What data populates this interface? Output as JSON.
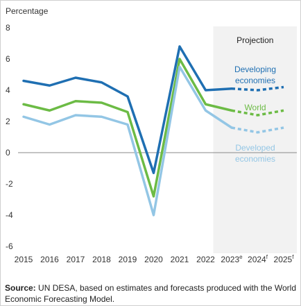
{
  "chart_data": {
    "type": "line",
    "ylabel": "Percentage",
    "yticks": [
      -6,
      -4,
      -2,
      0,
      2,
      4,
      6,
      8
    ],
    "ylim": [
      -6,
      8.5
    ],
    "categories": [
      "2015",
      "2016",
      "2017",
      "2018",
      "2019",
      "2020",
      "2021",
      "2022",
      "2023",
      "2024",
      "2025"
    ],
    "category_superscripts": [
      "",
      "",
      "",
      "",
      "",
      "",
      "",
      "",
      "e",
      "f",
      "f"
    ],
    "projection_label": "Projection",
    "projection_start": "2022",
    "grid": false,
    "series": [
      {
        "name": "Developing economies",
        "label_lines": [
          "Developing",
          "economies"
        ],
        "color": "#1f6fb2",
        "values": [
          4.6,
          4.3,
          4.8,
          4.5,
          3.6,
          -1.3,
          6.8,
          4.0,
          4.1,
          4.0,
          4.2
        ]
      },
      {
        "name": "World",
        "label_lines": [
          "World"
        ],
        "color": "#6cbb45",
        "values": [
          3.1,
          2.7,
          3.3,
          3.2,
          2.6,
          -2.8,
          6.0,
          3.1,
          2.7,
          2.4,
          2.7
        ]
      },
      {
        "name": "Developed economies",
        "label_lines": [
          "Developed",
          "economies"
        ],
        "color": "#93c6e5",
        "values": [
          2.3,
          1.8,
          2.4,
          2.3,
          1.8,
          -4.0,
          5.5,
          2.7,
          1.6,
          1.3,
          1.6
        ]
      }
    ]
  },
  "source": {
    "prefix": "Source:",
    "text": " UN DESA, based on estimates and forecasts produced with the World Economic Forecasting Model."
  }
}
